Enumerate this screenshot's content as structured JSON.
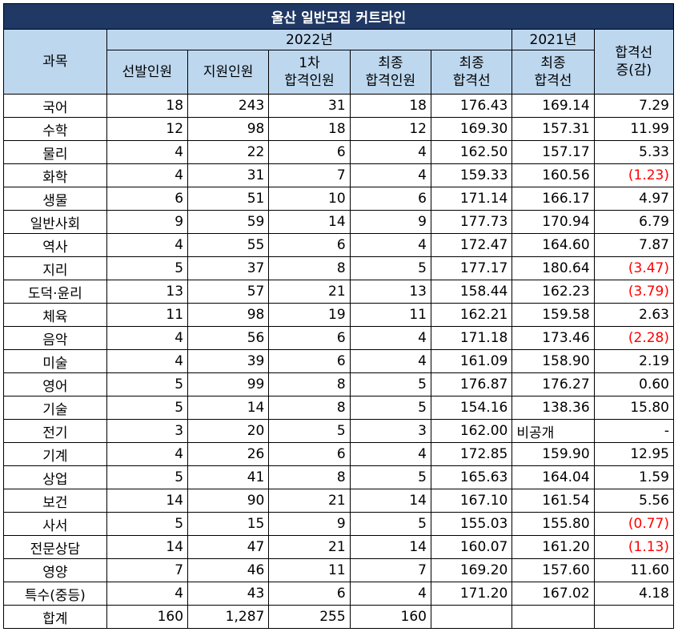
{
  "title": "울산 일반모집 커트라인",
  "header": {
    "subject": "과목",
    "year_2022": "2022년",
    "year_2021": "2021년",
    "change_line1": "합격선",
    "change_line2": "증(감)",
    "quota": "선발인원",
    "applicants": "지원인원",
    "first_pass_line1": "1차",
    "first_pass_line2": "합격인원",
    "final_pass_line1": "최종",
    "final_pass_line2": "합격인원",
    "final_cut_line1": "최종",
    "final_cut_line2": "합격선",
    "cut2021_line1": "최종",
    "cut2021_line2": "합격선"
  },
  "rows": [
    {
      "subject": "국어",
      "quota": "18",
      "applicants": "243",
      "first_pass": "31",
      "final_pass": "18",
      "cut_2022": "176.43",
      "cut_2021": "169.14",
      "change": "7.29",
      "negative": false
    },
    {
      "subject": "수학",
      "quota": "12",
      "applicants": "98",
      "first_pass": "18",
      "final_pass": "12",
      "cut_2022": "169.30",
      "cut_2021": "157.31",
      "change": "11.99",
      "negative": false
    },
    {
      "subject": "물리",
      "quota": "4",
      "applicants": "22",
      "first_pass": "6",
      "final_pass": "4",
      "cut_2022": "162.50",
      "cut_2021": "157.17",
      "change": "5.33",
      "negative": false
    },
    {
      "subject": "화학",
      "quota": "4",
      "applicants": "31",
      "first_pass": "7",
      "final_pass": "4",
      "cut_2022": "159.33",
      "cut_2021": "160.56",
      "change": "(1.23)",
      "negative": true
    },
    {
      "subject": "생물",
      "quota": "6",
      "applicants": "51",
      "first_pass": "10",
      "final_pass": "6",
      "cut_2022": "171.14",
      "cut_2021": "166.17",
      "change": "4.97",
      "negative": false
    },
    {
      "subject": "일반사회",
      "quota": "9",
      "applicants": "59",
      "first_pass": "14",
      "final_pass": "9",
      "cut_2022": "177.73",
      "cut_2021": "170.94",
      "change": "6.79",
      "negative": false
    },
    {
      "subject": "역사",
      "quota": "4",
      "applicants": "55",
      "first_pass": "6",
      "final_pass": "4",
      "cut_2022": "172.47",
      "cut_2021": "164.60",
      "change": "7.87",
      "negative": false
    },
    {
      "subject": "지리",
      "quota": "5",
      "applicants": "37",
      "first_pass": "8",
      "final_pass": "5",
      "cut_2022": "177.17",
      "cut_2021": "180.64",
      "change": "(3.47)",
      "negative": true
    },
    {
      "subject": "도덕·윤리",
      "quota": "13",
      "applicants": "57",
      "first_pass": "21",
      "final_pass": "13",
      "cut_2022": "158.44",
      "cut_2021": "162.23",
      "change": "(3.79)",
      "negative": true
    },
    {
      "subject": "체육",
      "quota": "11",
      "applicants": "98",
      "first_pass": "19",
      "final_pass": "11",
      "cut_2022": "162.21",
      "cut_2021": "159.58",
      "change": "2.63",
      "negative": false
    },
    {
      "subject": "음악",
      "quota": "4",
      "applicants": "56",
      "first_pass": "6",
      "final_pass": "4",
      "cut_2022": "171.18",
      "cut_2021": "173.46",
      "change": "(2.28)",
      "negative": true
    },
    {
      "subject": "미술",
      "quota": "4",
      "applicants": "39",
      "first_pass": "6",
      "final_pass": "4",
      "cut_2022": "161.09",
      "cut_2021": "158.90",
      "change": "2.19",
      "negative": false
    },
    {
      "subject": "영어",
      "quota": "5",
      "applicants": "99",
      "first_pass": "8",
      "final_pass": "5",
      "cut_2022": "176.87",
      "cut_2021": "176.27",
      "change": "0.60",
      "negative": false
    },
    {
      "subject": "기술",
      "quota": "5",
      "applicants": "14",
      "first_pass": "8",
      "final_pass": "5",
      "cut_2022": "154.16",
      "cut_2021": "138.36",
      "change": "15.80",
      "negative": false
    },
    {
      "subject": "전기",
      "quota": "3",
      "applicants": "20",
      "first_pass": "5",
      "final_pass": "3",
      "cut_2022": "162.00",
      "cut_2021": "비공개",
      "change": "-",
      "negative": false
    },
    {
      "subject": "기계",
      "quota": "4",
      "applicants": "26",
      "first_pass": "6",
      "final_pass": "4",
      "cut_2022": "172.85",
      "cut_2021": "159.90",
      "change": "12.95",
      "negative": false
    },
    {
      "subject": "상업",
      "quota": "5",
      "applicants": "41",
      "first_pass": "8",
      "final_pass": "5",
      "cut_2022": "165.63",
      "cut_2021": "164.04",
      "change": "1.59",
      "negative": false
    },
    {
      "subject": "보건",
      "quota": "14",
      "applicants": "90",
      "first_pass": "21",
      "final_pass": "14",
      "cut_2022": "167.10",
      "cut_2021": "161.54",
      "change": "5.56",
      "negative": false
    },
    {
      "subject": "사서",
      "quota": "5",
      "applicants": "15",
      "first_pass": "9",
      "final_pass": "5",
      "cut_2022": "155.03",
      "cut_2021": "155.80",
      "change": "(0.77)",
      "negative": true
    },
    {
      "subject": "전문상담",
      "quota": "14",
      "applicants": "47",
      "first_pass": "21",
      "final_pass": "14",
      "cut_2022": "160.07",
      "cut_2021": "161.20",
      "change": "(1.13)",
      "negative": true
    },
    {
      "subject": "영양",
      "quota": "7",
      "applicants": "46",
      "first_pass": "11",
      "final_pass": "7",
      "cut_2022": "169.20",
      "cut_2021": "157.60",
      "change": "11.60",
      "negative": false
    },
    {
      "subject": "특수(중등)",
      "quota": "4",
      "applicants": "43",
      "first_pass": "6",
      "final_pass": "4",
      "cut_2022": "171.20",
      "cut_2021": "167.02",
      "change": "4.18",
      "negative": false
    }
  ],
  "total": {
    "subject": "합계",
    "quota": "160",
    "applicants": "1,287",
    "first_pass": "255",
    "final_pass": "160",
    "cut_2022": "",
    "cut_2021": "",
    "change": ""
  },
  "colors": {
    "title_bg": "#1f3864",
    "header_bg": "#bdd7ee",
    "negative_text": "#ff0000"
  }
}
